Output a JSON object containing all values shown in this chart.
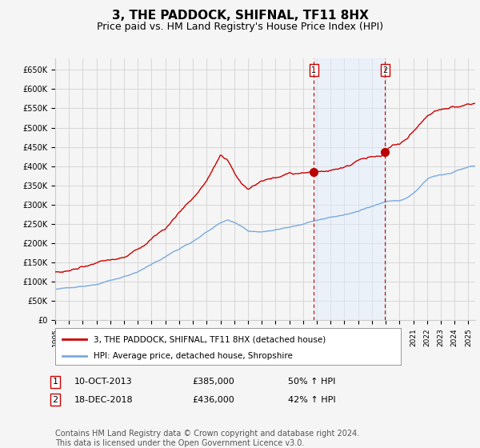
{
  "title": "3, THE PADDOCK, SHIFNAL, TF11 8HX",
  "subtitle": "Price paid vs. HM Land Registry's House Price Index (HPI)",
  "ylim": [
    0,
    680000
  ],
  "yticks": [
    0,
    50000,
    100000,
    150000,
    200000,
    250000,
    300000,
    350000,
    400000,
    450000,
    500000,
    550000,
    600000,
    650000
  ],
  "ytick_labels": [
    "£0",
    "£50K",
    "£100K",
    "£150K",
    "£200K",
    "£250K",
    "£300K",
    "£350K",
    "£400K",
    "£450K",
    "£500K",
    "£550K",
    "£600K",
    "£650K"
  ],
  "xlim_start": 1995.0,
  "xlim_end": 2025.5,
  "xtick_years": [
    1995,
    1996,
    1997,
    1998,
    1999,
    2000,
    2001,
    2002,
    2003,
    2004,
    2005,
    2006,
    2007,
    2008,
    2009,
    2010,
    2011,
    2012,
    2013,
    2014,
    2015,
    2016,
    2017,
    2018,
    2019,
    2020,
    2021,
    2022,
    2023,
    2024,
    2025
  ],
  "sale1_x": 2013.78,
  "sale1_y": 385000,
  "sale1_label": "1",
  "sale2_x": 2018.96,
  "sale2_y": 436000,
  "sale2_label": "2",
  "marker_color": "#bb0000",
  "red_line_color": "#cc0000",
  "blue_line_color": "#7aaadd",
  "blue_fill_color": "#ddeeff",
  "vline_color": "#cc0000",
  "vline_style": "--",
  "grid_color": "#cccccc",
  "background_color": "#f5f5f5",
  "plot_bg_color": "#f5f5f5",
  "legend1_label": "3, THE PADDOCK, SHIFNAL, TF11 8HX (detached house)",
  "legend2_label": "HPI: Average price, detached house, Shropshire",
  "table_row1": [
    "1",
    "10-OCT-2013",
    "£385,000",
    "50% ↑ HPI"
  ],
  "table_row2": [
    "2",
    "18-DEC-2018",
    "£436,000",
    "42% ↑ HPI"
  ],
  "footer": "Contains HM Land Registry data © Crown copyright and database right 2024.\nThis data is licensed under the Open Government Licence v3.0.",
  "title_fontsize": 11,
  "subtitle_fontsize": 9,
  "tick_fontsize": 7,
  "legend_fontsize": 8,
  "table_fontsize": 8,
  "footer_fontsize": 7,
  "red_anchors_x": [
    1995,
    1996,
    1997,
    1998,
    1999,
    2000,
    2001,
    2002,
    2003,
    2004,
    2005,
    2006,
    2007,
    2007.5,
    2008,
    2008.5,
    2009,
    2009.5,
    2010,
    2010.5,
    2011,
    2011.5,
    2012,
    2012.5,
    2013,
    2013.78,
    2014,
    2014.5,
    2015,
    2015.5,
    2016,
    2016.5,
    2017,
    2017.5,
    2018,
    2018.96,
    2019,
    2019.5,
    2020,
    2020.5,
    2021,
    2021.5,
    2022,
    2022.5,
    2023,
    2023.5,
    2024,
    2024.5,
    2025
  ],
  "red_anchors_y": [
    125000,
    128000,
    135000,
    145000,
    155000,
    165000,
    185000,
    210000,
    235000,
    280000,
    320000,
    360000,
    425000,
    415000,
    380000,
    355000,
    340000,
    350000,
    355000,
    360000,
    365000,
    370000,
    375000,
    372000,
    378000,
    385000,
    388000,
    392000,
    395000,
    398000,
    400000,
    405000,
    415000,
    420000,
    425000,
    436000,
    445000,
    455000,
    460000,
    475000,
    495000,
    515000,
    535000,
    545000,
    548000,
    552000,
    555000,
    558000,
    562000
  ],
  "blue_anchors_x": [
    1995,
    1996,
    1997,
    1998,
    1999,
    2000,
    2001,
    2002,
    2003,
    2004,
    2005,
    2006,
    2007,
    2007.5,
    2008,
    2008.5,
    2009,
    2009.5,
    2010,
    2010.5,
    2011,
    2011.5,
    2012,
    2012.5,
    2013,
    2013.5,
    2014,
    2014.5,
    2015,
    2015.5,
    2016,
    2016.5,
    2017,
    2017.5,
    2018,
    2018.5,
    2019,
    2019.5,
    2020,
    2020.5,
    2021,
    2021.5,
    2022,
    2022.5,
    2023,
    2023.5,
    2024,
    2024.5,
    2025
  ],
  "blue_anchors_y": [
    80000,
    84000,
    90000,
    98000,
    107000,
    118000,
    130000,
    148000,
    168000,
    190000,
    210000,
    232000,
    258000,
    265000,
    258000,
    248000,
    235000,
    233000,
    232000,
    234000,
    236000,
    240000,
    244000,
    248000,
    252000,
    256000,
    260000,
    264000,
    268000,
    270000,
    272000,
    276000,
    282000,
    288000,
    295000,
    300000,
    305000,
    308000,
    308000,
    315000,
    328000,
    345000,
    365000,
    372000,
    375000,
    378000,
    385000,
    392000,
    400000
  ]
}
